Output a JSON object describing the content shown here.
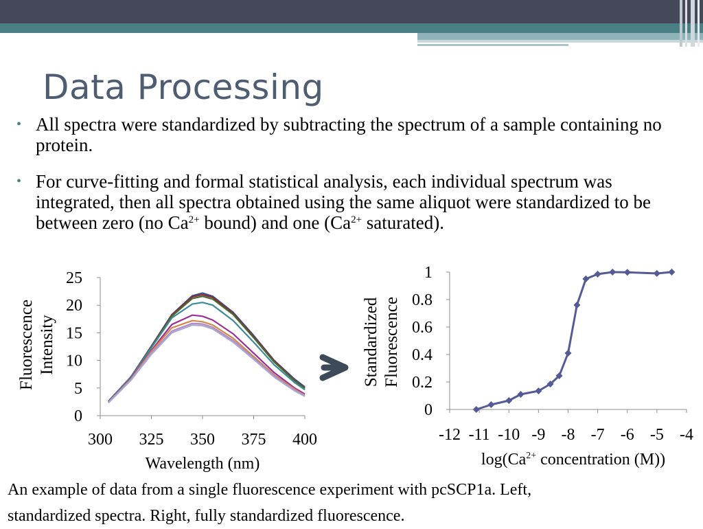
{
  "slide": {
    "title": "Data Processing",
    "bullet1": "All spectra were standardized by subtracting the spectrum of a sample containing no protein.",
    "bullet2": {
      "part1": "For curve-fitting and formal statistical analysis, each individual spectrum was integrated, then all spectra obtained using the same aliquot were standardized to be between zero (no Ca",
      "sup": "2+",
      "part2": " bound) and one (Ca",
      "part3": " saturated)."
    },
    "caption_line1": "An example of data from a single fluorescence experiment with pcSCP1a.  Left,",
    "caption_line2": "standardized spectra.  Right, fully standardized fluorescence.",
    "arrow_icon": "right-arrow-icon",
    "theme_colors": {
      "dark_band": "#454858",
      "teal_band": "#4a7f86",
      "title": "#4f5d73",
      "line": "#535a96"
    }
  },
  "chart_data": [
    {
      "type": "line",
      "title": "",
      "xlabel": "Wavelength (nm)",
      "ylabel": "Fluorescence Intensity",
      "ylabel_lines": [
        "Fluorescence",
        "Intensity"
      ],
      "xlim": [
        300,
        400
      ],
      "ylim": [
        0,
        25
      ],
      "x_ticks": [
        300,
        325,
        350,
        375,
        400
      ],
      "y_ticks": [
        0,
        5,
        10,
        15,
        20,
        25
      ],
      "grid": false,
      "legend": "none",
      "x": [
        304,
        315,
        325,
        335,
        345,
        350,
        355,
        365,
        375,
        385,
        395,
        400
      ],
      "series": [
        {
          "color": "#2f4f8f",
          "values": [
            2.6,
            7.0,
            12.6,
            18.3,
            21.7,
            22.2,
            21.6,
            18.7,
            14.5,
            10.0,
            6.6,
            5.2
          ]
        },
        {
          "color": "#8b2e3a",
          "values": [
            2.6,
            7.0,
            12.5,
            18.2,
            21.5,
            21.9,
            21.4,
            18.5,
            14.3,
            9.9,
            6.4,
            5.0
          ]
        },
        {
          "color": "#4a6a2e",
          "values": [
            2.5,
            6.9,
            12.4,
            18.0,
            21.2,
            21.6,
            21.1,
            18.3,
            14.1,
            9.7,
            6.3,
            4.9
          ]
        },
        {
          "color": "#3b8a9a",
          "values": [
            2.5,
            6.9,
            12.3,
            17.7,
            20.2,
            20.5,
            20.0,
            17.2,
            13.3,
            9.2,
            6.0,
            4.7
          ]
        },
        {
          "color": "#9a2f9a",
          "values": [
            2.4,
            6.7,
            11.8,
            16.5,
            18.2,
            18.0,
            17.3,
            14.8,
            11.3,
            7.8,
            5.0,
            3.9
          ]
        },
        {
          "color": "#d08a4a",
          "values": [
            2.4,
            6.6,
            11.6,
            15.9,
            17.2,
            17.0,
            16.4,
            14.0,
            10.7,
            7.4,
            4.8,
            3.7
          ]
        },
        {
          "color": "#b48ac0",
          "values": [
            2.4,
            6.5,
            11.3,
            15.3,
            16.7,
            16.6,
            16.0,
            13.6,
            10.4,
            7.2,
            4.6,
            3.6
          ]
        },
        {
          "color": "#a8a8d8",
          "values": [
            2.3,
            6.4,
            11.1,
            15.0,
            16.4,
            16.3,
            15.7,
            13.3,
            10.2,
            7.0,
            4.5,
            3.5
          ]
        }
      ]
    },
    {
      "type": "line",
      "title": "",
      "xlabel": "log(Ca2+ concentration (M))",
      "xlabel_parts": [
        "log(Ca",
        "2+",
        " concentration (M))"
      ],
      "ylabel": "Standardized Fluorescence",
      "ylabel_lines": [
        "Standardized",
        "Fluorescence"
      ],
      "xlim": [
        -12,
        -4
      ],
      "ylim": [
        0,
        1
      ],
      "x_ticks": [
        -12,
        -11,
        -10,
        -9,
        -8,
        -7,
        -6,
        -5,
        -4
      ],
      "y_ticks": [
        0,
        0.2,
        0.4,
        0.6,
        0.8,
        1
      ],
      "grid": false,
      "legend": "none",
      "series": [
        {
          "color": "#535a96",
          "marker": "diamond",
          "x": [
            -11.1,
            -10.6,
            -10.0,
            -9.6,
            -9.0,
            -8.6,
            -8.3,
            -8.0,
            -7.7,
            -7.4,
            -7.0,
            -6.5,
            -6.0,
            -5.0,
            -4.5
          ],
          "values": [
            0.0,
            0.035,
            0.065,
            0.11,
            0.135,
            0.185,
            0.245,
            0.41,
            0.76,
            0.95,
            0.985,
            1.0,
            0.998,
            0.99,
            1.0
          ]
        }
      ]
    }
  ]
}
